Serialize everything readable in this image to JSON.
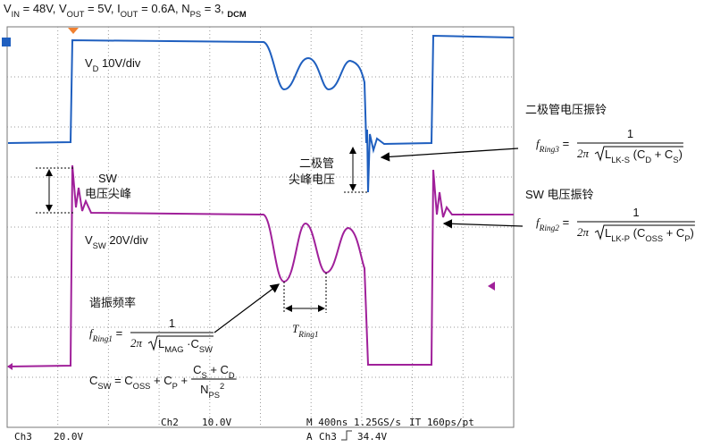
{
  "title": [
    "V",
    "IN",
    " = 48V, V",
    "OUT",
    " = 5V, I",
    "OUT",
    " = 0.6A, N",
    "PS",
    " = 3, ",
    "DCM"
  ],
  "vd_label": [
    "V",
    "D",
    " 10V/div"
  ],
  "vsw_label": [
    "V",
    "SW",
    " 20V/div"
  ],
  "sw_spike": {
    "line1": "SW",
    "line2": "电压尖峰"
  },
  "diode_spike": {
    "line1": "二极管",
    "line2": "尖峰电压"
  },
  "resonance": {
    "label": "谐振频率",
    "f": [
      "f",
      "Ring1",
      " ="
    ],
    "num": "1",
    "den": "2π",
    "rad": [
      "L",
      "MAG",
      " ·C",
      "SW"
    ],
    "csw": [
      "C",
      "SW",
      " = C",
      "OSS",
      " + C",
      "P",
      " +"
    ],
    "csw_num": [
      "C",
      "S",
      " + C",
      "D"
    ],
    "csw_den": [
      "N",
      "PS"
    ],
    "csw_sup": "2"
  },
  "period": [
    "T",
    "Ring1"
  ],
  "ring3": {
    "label": "二极管电压振铃",
    "f": [
      "f",
      "Ring3",
      " ="
    ],
    "num": "1",
    "den": "2π",
    "rad": [
      "L",
      "LK-S",
      " (C",
      "D",
      " + C",
      "S",
      ")"
    ]
  },
  "ring2": {
    "label": "SW 电压振铃",
    "f": [
      "f",
      "Ring2",
      " ="
    ],
    "num": "1",
    "den": "2π",
    "rad": [
      "L",
      "LK-P",
      " (C",
      "OSS",
      " + C",
      "P",
      ")"
    ]
  },
  "status": {
    "ch3": "Ch3",
    "ch3_scale": "20.0V",
    "ch2": "Ch2",
    "ch2_scale": "10.0V",
    "timebase": "M 400ns 1.25GS/s",
    "interp": "IT 160ps/pt",
    "trig_src_a": "A",
    "trig_src": "Ch3",
    "trig_level": "34.4V"
  }
}
